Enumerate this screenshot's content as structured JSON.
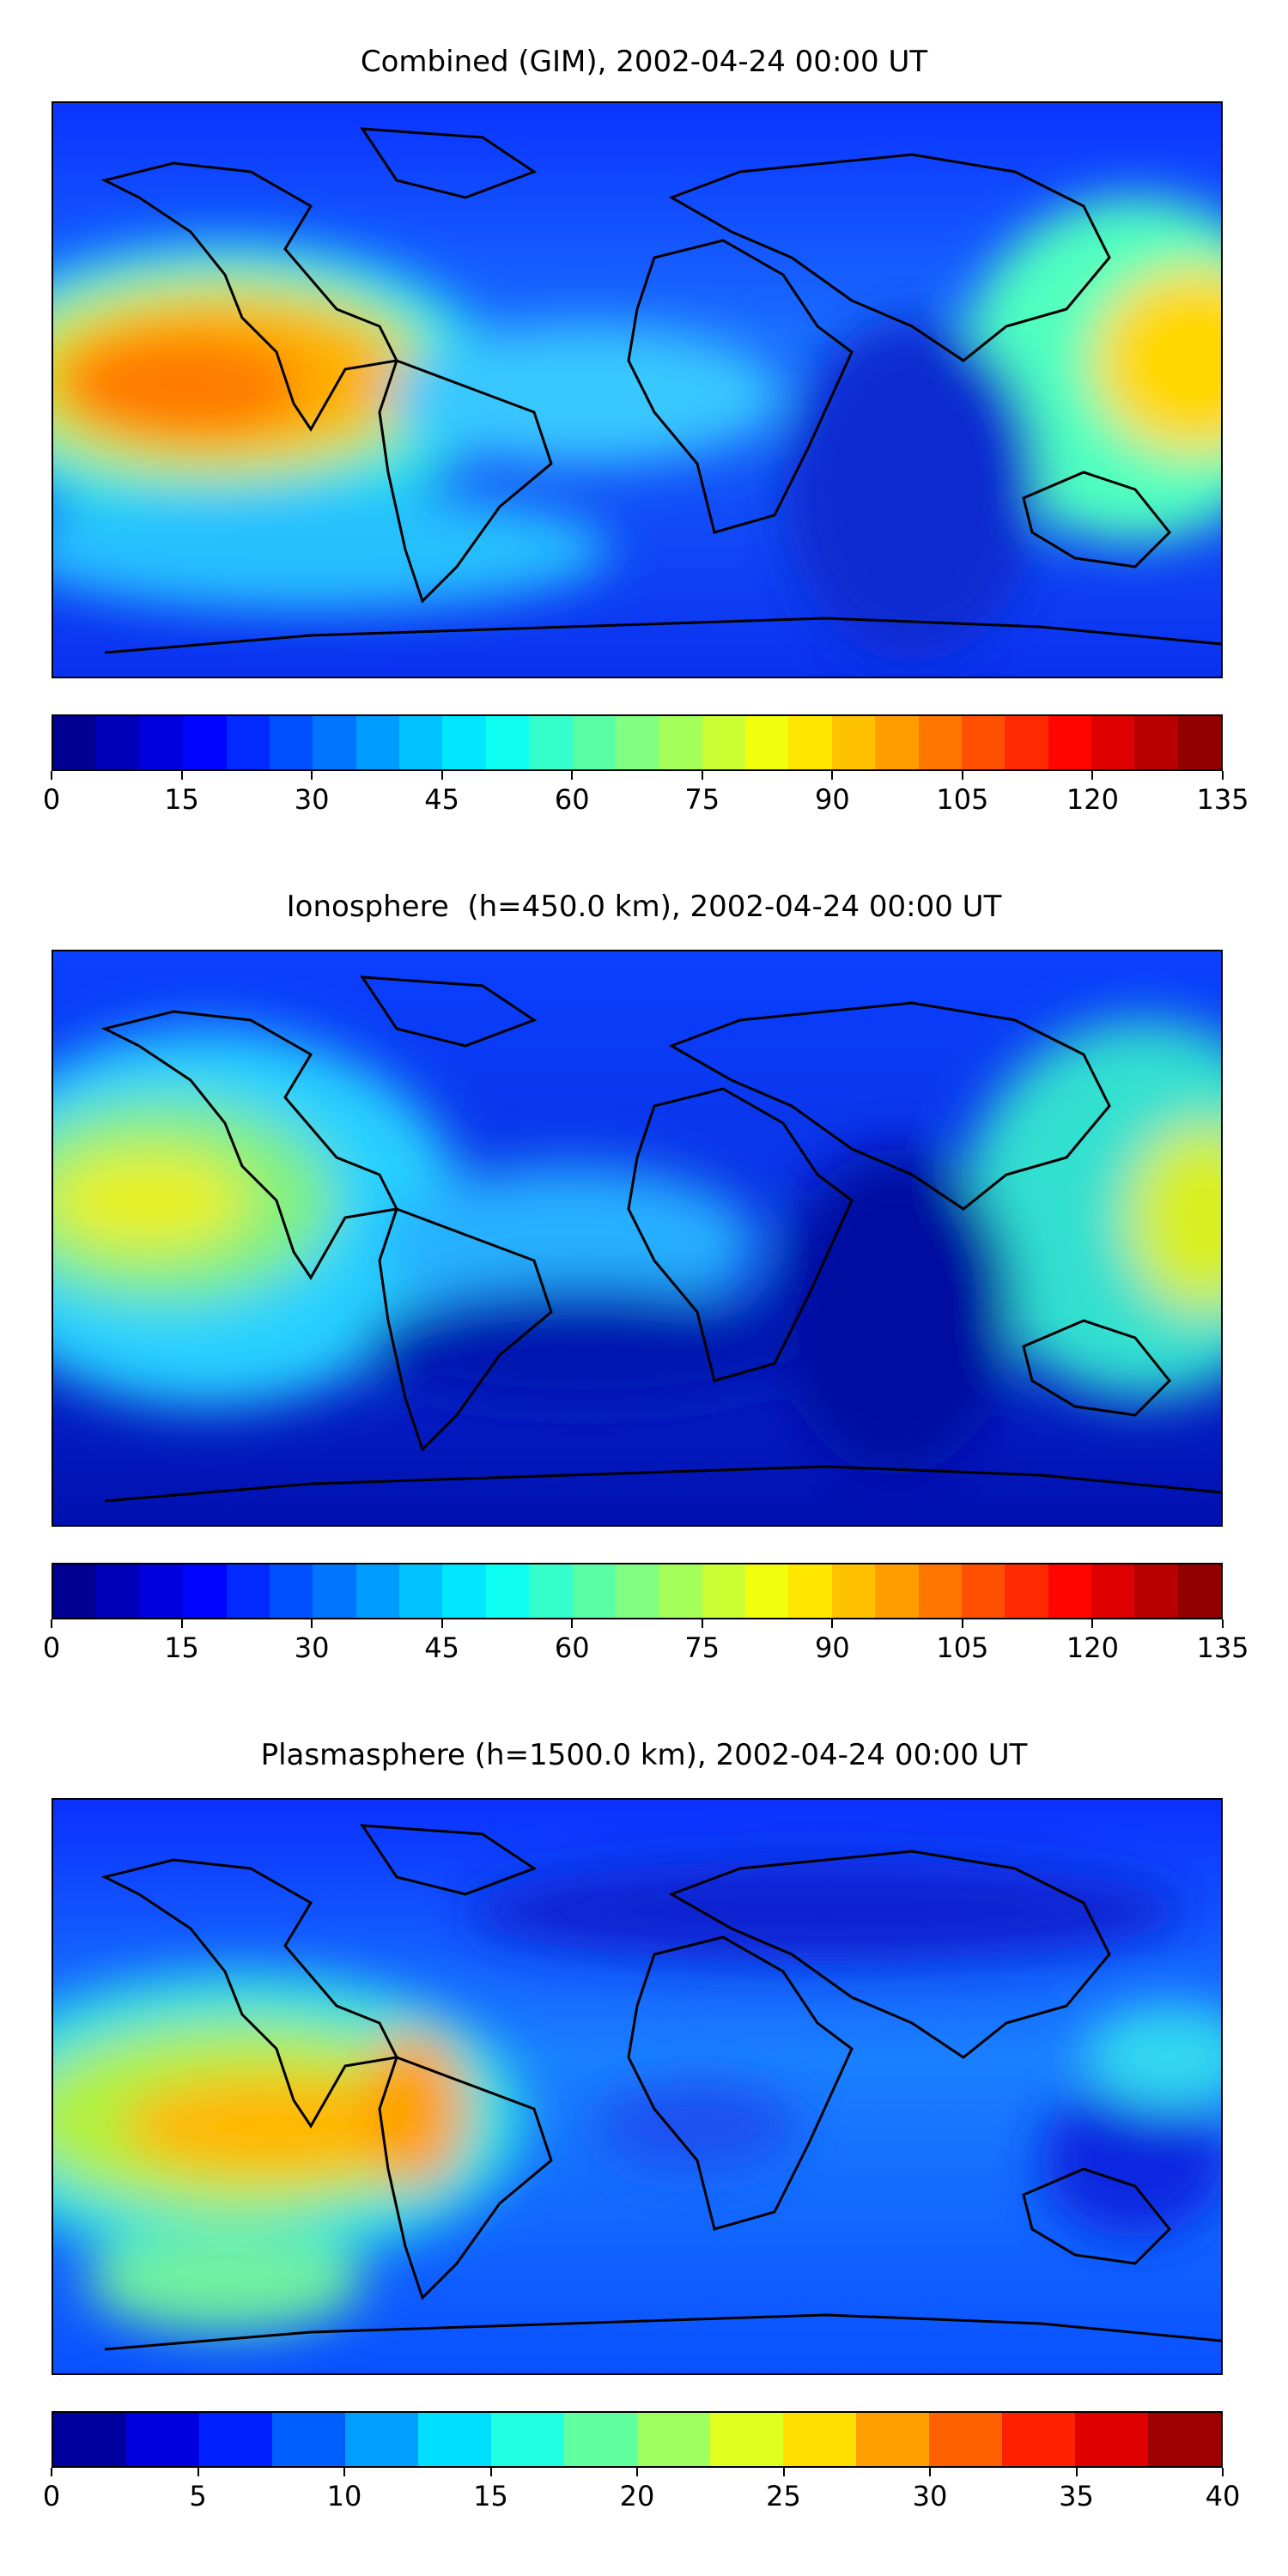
{
  "panels": [
    {
      "title": "Combined (GIM), 2002-04-24 00:00 UT",
      "colorbar": {
        "ticks": [
          "0",
          "15",
          "30",
          "45",
          "60",
          "75",
          "90",
          "105",
          "120",
          "135"
        ],
        "levels": 27
      }
    },
    {
      "title": "Ionosphere  (h=450.0 km), 2002-04-24 00:00 UT",
      "colorbar": {
        "ticks": [
          "0",
          "15",
          "30",
          "45",
          "60",
          "75",
          "90",
          "105",
          "120",
          "135"
        ],
        "levels": 27
      }
    },
    {
      "title": "Plasmasphere (h=1500.0 km), 2002-04-24 00:00 UT",
      "colorbar": {
        "ticks": [
          "0",
          "5",
          "10",
          "15",
          "20",
          "25",
          "30",
          "35",
          "40"
        ],
        "levels": 16
      }
    }
  ],
  "colormap": "jet",
  "colors": {
    "background": "#ffffff",
    "outline": "#000000"
  }
}
